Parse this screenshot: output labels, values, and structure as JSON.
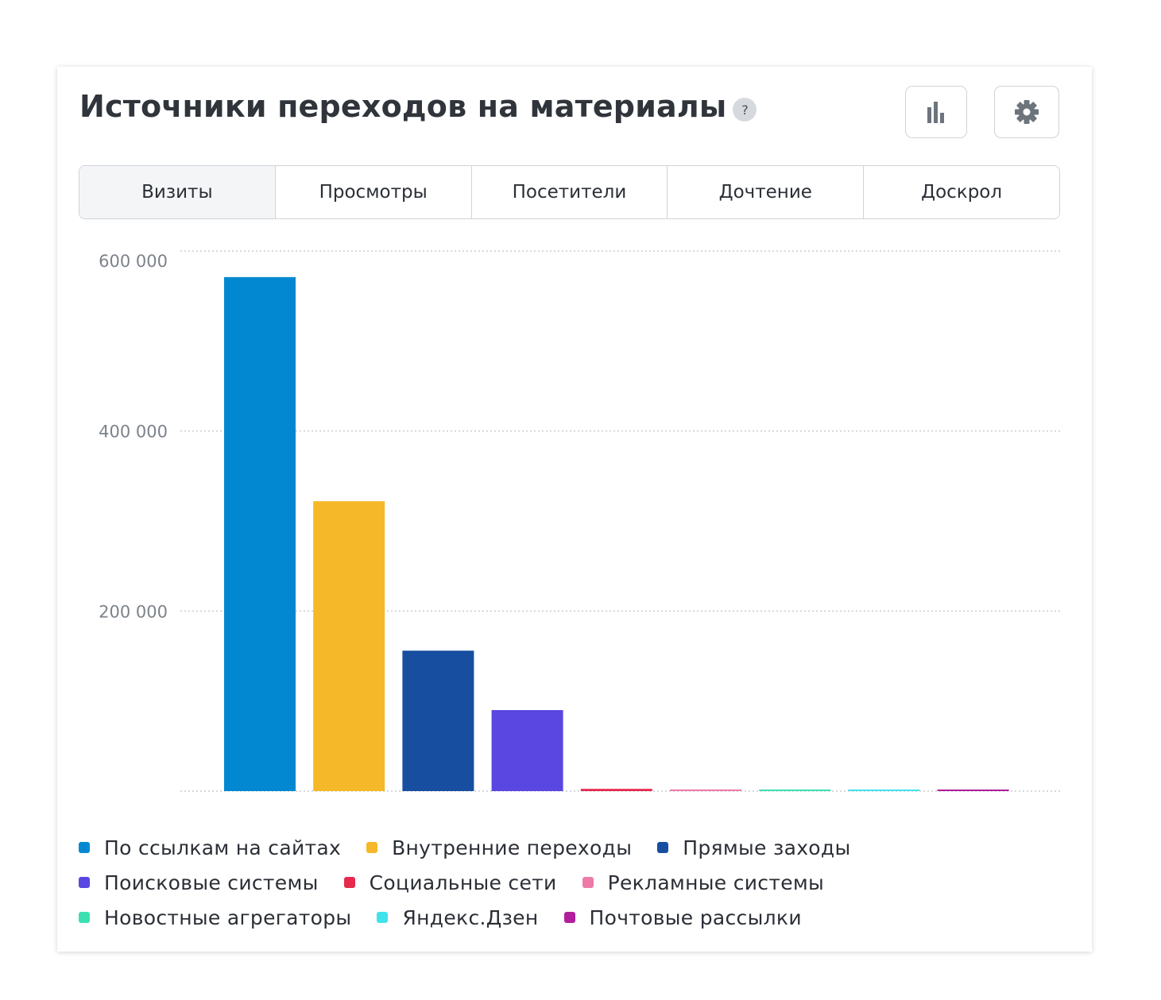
{
  "card": {
    "title": "Источники переходов на материалы",
    "help_label": "?",
    "buttons": [
      {
        "icon": "bar-chart-icon"
      },
      {
        "icon": "gear-icon"
      }
    ]
  },
  "tabs": [
    {
      "label": "Визиты",
      "active": true
    },
    {
      "label": "Просмотры",
      "active": false
    },
    {
      "label": "Посетители",
      "active": false
    },
    {
      "label": "Дочтение",
      "active": false
    },
    {
      "label": "Доскрол",
      "active": false
    }
  ],
  "chart_data": {
    "type": "bar",
    "title": "Источники переходов на материалы",
    "xlabel": "",
    "ylabel": "",
    "ylim": [
      0,
      600000
    ],
    "yticks": [
      0,
      200000,
      400000,
      600000
    ],
    "ytick_labels": [
      "",
      "200 000",
      "400 000",
      "600 000"
    ],
    "grid": true,
    "legend_position": "bottom",
    "categories": [
      "По ссылкам на сайтах",
      "Внутренние переходы",
      "Прямые заходы",
      "Поисковые системы",
      "Социальные сети",
      "Рекламные системы",
      "Новостные агрегаторы",
      "Яндекс.Дзен",
      "Почтовые рассылки"
    ],
    "values": [
      571000,
      322000,
      156000,
      90000,
      2500,
      1800,
      1200,
      1000,
      1400
    ],
    "colors": [
      "#0288d1",
      "#f4b829",
      "#174ea0",
      "#5a46e0",
      "#e8294e",
      "#ee7aa8",
      "#3be0b0",
      "#40e3ec",
      "#b01e9c"
    ]
  }
}
